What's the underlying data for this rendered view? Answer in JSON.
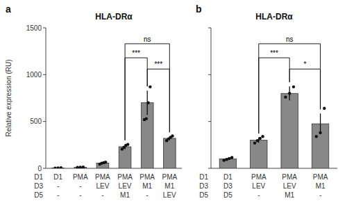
{
  "chart_data": [
    {
      "type": "bar",
      "panel_label": "a",
      "title": "HLA-DRα",
      "y_label": "Relative expression (RU)",
      "categories": [
        [
          "D1",
          "-",
          "-"
        ],
        [
          "PMA",
          "-",
          "-"
        ],
        [
          "PMA",
          "LEV",
          "-"
        ],
        [
          "PMA",
          "LEV",
          "M1"
        ],
        [
          "PMA",
          "M1",
          "-"
        ],
        [
          "PMA",
          "M1",
          "LEV"
        ]
      ],
      "row_labels": [
        "D1",
        "D3",
        "D5"
      ],
      "values": [
        4,
        12,
        55,
        230,
        700,
        320
      ],
      "errors": [
        1,
        2,
        8,
        25,
        130,
        20
      ],
      "points": [
        [
          2,
          4,
          6
        ],
        [
          9,
          11,
          14
        ],
        [
          45,
          55,
          60,
          65
        ],
        [
          205,
          225,
          245,
          255
        ],
        [
          520,
          530,
          700,
          870
        ],
        [
          295,
          315,
          330,
          345
        ]
      ],
      "annotations": [
        {
          "from": 3,
          "to": 4,
          "y": 1180,
          "label": "***"
        },
        {
          "from": 3,
          "to": 5,
          "y": 1330,
          "label": "ns"
        },
        {
          "from": 4,
          "to": 5,
          "y": 1060,
          "label": "***"
        }
      ],
      "color": "#888888",
      "ylim": [
        0,
        1500
      ],
      "yticks": [
        0,
        500,
        1000,
        1500
      ],
      "grid": false
    },
    {
      "type": "bar",
      "panel_label": "b",
      "title": "HLA-DRα",
      "categories": [
        [
          "D1",
          "D3",
          "D5"
        ],
        [
          "PMA",
          "LEV",
          "-"
        ],
        [
          "PMA",
          "LEV",
          "M1"
        ],
        [
          "PMA",
          "M1",
          "-"
        ]
      ],
      "row_labels": [
        "D1",
        "D3",
        "D5"
      ],
      "values": [
        100,
        300,
        800,
        475
      ],
      "errors": [
        12,
        28,
        75,
        110
      ],
      "points": [
        [
          85,
          95,
          105,
          115
        ],
        [
          270,
          295,
          320,
          340
        ],
        [
          760,
          800,
          870
        ],
        [
          340,
          380,
          640
        ]
      ],
      "annotations": [
        {
          "from": 1,
          "to": 2,
          "y": 1180,
          "label": "***"
        },
        {
          "from": 1,
          "to": 3,
          "y": 1330,
          "label": "ns"
        },
        {
          "from": 2,
          "to": 3,
          "y": 1060,
          "label": "*"
        }
      ],
      "color": "#888888",
      "ylim": [
        0,
        1500
      ],
      "yticks": [
        0,
        500,
        1000,
        1500
      ],
      "grid": false,
      "tick_labels": "x"
    }
  ]
}
